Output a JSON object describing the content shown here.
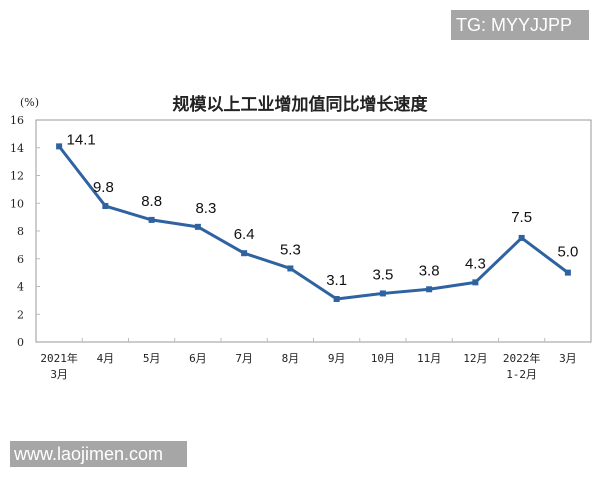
{
  "watermarks": {
    "top_right": "TG: MYYJJPP",
    "bottom_left": "www.laojimen.com"
  },
  "chart_data": {
    "type": "line",
    "title": "规模以上工业增加值同比增长速度",
    "ylabel": "(%)",
    "xlabel": "",
    "ylim": [
      0,
      16
    ],
    "yticks": [
      0,
      2,
      4,
      6,
      8,
      10,
      12,
      14,
      16
    ],
    "grid": false,
    "legend": null,
    "categories": [
      [
        "2021年",
        "3月"
      ],
      [
        "4月"
      ],
      [
        "5月"
      ],
      [
        "6月"
      ],
      [
        "7月"
      ],
      [
        "8月"
      ],
      [
        "9月"
      ],
      [
        "10月"
      ],
      [
        "11月"
      ],
      [
        "12月"
      ],
      [
        "2022年",
        "1-2月"
      ],
      [
        "3月"
      ]
    ],
    "series": [
      {
        "name": "规模以上工业增加值同比增长速度",
        "color": "#2e62a0",
        "values": [
          14.1,
          9.8,
          8.8,
          8.3,
          6.4,
          5.3,
          3.1,
          3.5,
          3.8,
          4.3,
          7.5,
          5.0
        ],
        "labels": [
          "14.1",
          "9.8",
          "8.8",
          "8.3",
          "6.4",
          "5.3",
          "3.1",
          "3.5",
          "3.8",
          "4.3",
          "7.5",
          "5.0"
        ]
      }
    ]
  }
}
